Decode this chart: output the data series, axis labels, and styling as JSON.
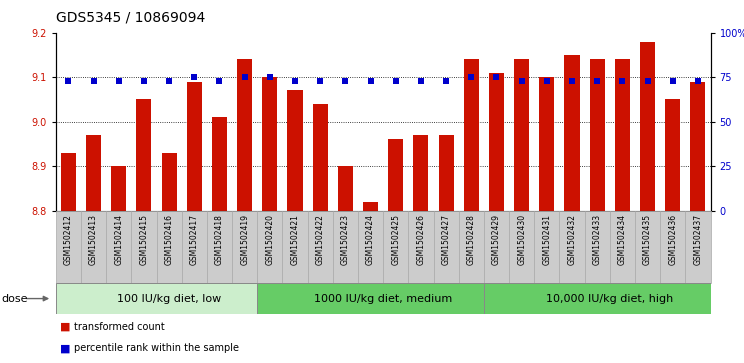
{
  "title": "GDS5345 / 10869094",
  "samples": [
    "GSM1502412",
    "GSM1502413",
    "GSM1502414",
    "GSM1502415",
    "GSM1502416",
    "GSM1502417",
    "GSM1502418",
    "GSM1502419",
    "GSM1502420",
    "GSM1502421",
    "GSM1502422",
    "GSM1502423",
    "GSM1502424",
    "GSM1502425",
    "GSM1502426",
    "GSM1502427",
    "GSM1502428",
    "GSM1502429",
    "GSM1502430",
    "GSM1502431",
    "GSM1502432",
    "GSM1502433",
    "GSM1502434",
    "GSM1502435",
    "GSM1502436",
    "GSM1502437"
  ],
  "bar_values": [
    8.93,
    8.97,
    8.9,
    9.05,
    8.93,
    9.09,
    9.01,
    9.14,
    9.1,
    9.07,
    9.04,
    8.9,
    8.82,
    8.96,
    8.97,
    8.97,
    9.14,
    9.11,
    9.14,
    9.1,
    9.15,
    9.14,
    9.14,
    9.18,
    9.05,
    9.09
  ],
  "percentile_values": [
    73,
    73,
    73,
    73,
    73,
    75,
    73,
    75,
    75,
    73,
    73,
    73,
    73,
    73,
    73,
    73,
    75,
    75,
    73,
    73,
    73,
    73,
    73,
    73,
    73,
    73
  ],
  "bar_color": "#cc1100",
  "percentile_color": "#0000cc",
  "ylim_left": [
    8.8,
    9.2
  ],
  "ylim_right": [
    0,
    100
  ],
  "yticks_left": [
    8.8,
    8.9,
    9.0,
    9.1,
    9.2
  ],
  "yticks_right": [
    0,
    25,
    50,
    75,
    100
  ],
  "ytick_labels_right": [
    "0",
    "25",
    "50",
    "75",
    "100%"
  ],
  "grid_values": [
    8.9,
    9.0,
    9.1
  ],
  "groups": [
    {
      "label": "100 IU/kg diet, low",
      "start": 0,
      "end": 8,
      "color": "#cceecc"
    },
    {
      "label": "1000 IU/kg diet, medium",
      "start": 8,
      "end": 17,
      "color": "#66cc66"
    },
    {
      "label": "10,000 IU/kg diet, high",
      "start": 17,
      "end": 26,
      "color": "#66cc66"
    }
  ],
  "dose_label": "dose",
  "legend_bar_label": "transformed count",
  "legend_pct_label": "percentile rank within the sample",
  "bar_width": 0.6,
  "xtick_bg_color": "#cccccc",
  "chart_bg": "#ffffff",
  "title_fontsize": 10,
  "tick_fontsize": 7,
  "group_fontsize": 8
}
